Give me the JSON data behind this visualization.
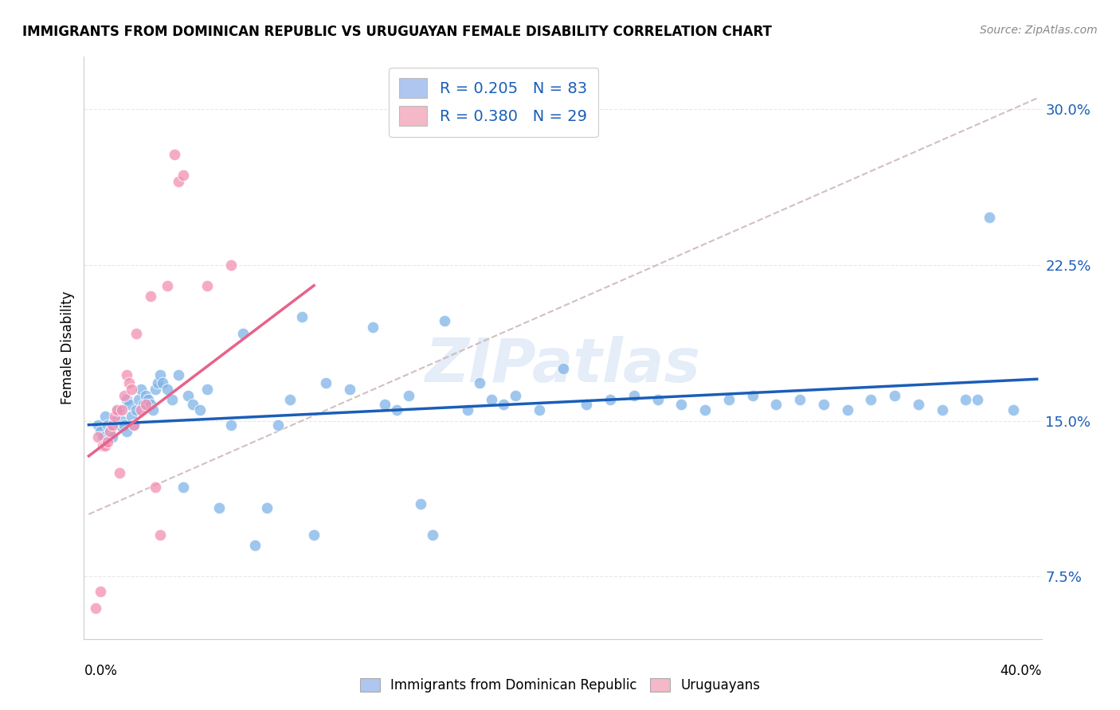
{
  "title": "IMMIGRANTS FROM DOMINICAN REPUBLIC VS URUGUAYAN FEMALE DISABILITY CORRELATION CHART",
  "source": "Source: ZipAtlas.com",
  "ylabel": "Female Disability",
  "legend_label1": "R = 0.205   N = 83",
  "legend_label2": "R = 0.380   N = 29",
  "legend_color1": "#aec6f0",
  "legend_color2": "#f4b8c8",
  "scatter_color1": "#7fb3e8",
  "scatter_color2": "#f48fb1",
  "trend_color1": "#1a5eb8",
  "trend_color2": "#e8628a",
  "trend_dashed_color": "#c8b0b0",
  "watermark": "ZIPatlas",
  "blue_scatter_x": [
    0.004,
    0.005,
    0.006,
    0.007,
    0.008,
    0.009,
    0.01,
    0.011,
    0.012,
    0.013,
    0.013,
    0.014,
    0.015,
    0.016,
    0.016,
    0.017,
    0.018,
    0.019,
    0.02,
    0.021,
    0.022,
    0.023,
    0.024,
    0.025,
    0.026,
    0.027,
    0.028,
    0.029,
    0.03,
    0.031,
    0.033,
    0.035,
    0.038,
    0.04,
    0.042,
    0.044,
    0.047,
    0.05,
    0.055,
    0.06,
    0.065,
    0.07,
    0.075,
    0.08,
    0.085,
    0.09,
    0.095,
    0.1,
    0.11,
    0.12,
    0.125,
    0.13,
    0.135,
    0.14,
    0.145,
    0.15,
    0.16,
    0.165,
    0.17,
    0.175,
    0.18,
    0.19,
    0.2,
    0.21,
    0.22,
    0.23,
    0.24,
    0.25,
    0.26,
    0.27,
    0.28,
    0.29,
    0.3,
    0.31,
    0.32,
    0.33,
    0.34,
    0.35,
    0.36,
    0.37,
    0.375,
    0.38,
    0.39
  ],
  "blue_scatter_y": [
    0.148,
    0.145,
    0.142,
    0.152,
    0.148,
    0.145,
    0.142,
    0.15,
    0.155,
    0.148,
    0.155,
    0.15,
    0.148,
    0.145,
    0.16,
    0.158,
    0.152,
    0.148,
    0.155,
    0.16,
    0.165,
    0.158,
    0.162,
    0.16,
    0.158,
    0.155,
    0.165,
    0.168,
    0.172,
    0.168,
    0.165,
    0.16,
    0.172,
    0.118,
    0.162,
    0.158,
    0.155,
    0.165,
    0.108,
    0.148,
    0.192,
    0.09,
    0.108,
    0.148,
    0.16,
    0.2,
    0.095,
    0.168,
    0.165,
    0.195,
    0.158,
    0.155,
    0.162,
    0.11,
    0.095,
    0.198,
    0.155,
    0.168,
    0.16,
    0.158,
    0.162,
    0.155,
    0.175,
    0.158,
    0.16,
    0.162,
    0.16,
    0.158,
    0.155,
    0.16,
    0.162,
    0.158,
    0.16,
    0.158,
    0.155,
    0.16,
    0.162,
    0.158,
    0.155,
    0.16,
    0.16,
    0.248,
    0.155
  ],
  "pink_scatter_x": [
    0.003,
    0.004,
    0.005,
    0.006,
    0.007,
    0.008,
    0.009,
    0.01,
    0.011,
    0.012,
    0.013,
    0.014,
    0.015,
    0.016,
    0.017,
    0.018,
    0.019,
    0.02,
    0.022,
    0.024,
    0.026,
    0.028,
    0.03,
    0.033,
    0.036,
    0.038,
    0.04,
    0.05,
    0.06
  ],
  "pink_scatter_y": [
    0.06,
    0.142,
    0.068,
    0.138,
    0.138,
    0.14,
    0.145,
    0.148,
    0.152,
    0.155,
    0.125,
    0.155,
    0.162,
    0.172,
    0.168,
    0.165,
    0.148,
    0.192,
    0.155,
    0.158,
    0.21,
    0.118,
    0.095,
    0.215,
    0.278,
    0.265,
    0.268,
    0.215,
    0.225
  ],
  "blue_trend_x": [
    0.0,
    0.4
  ],
  "blue_trend_y": [
    0.148,
    0.17
  ],
  "pink_trend_x": [
    0.0,
    0.095
  ],
  "pink_trend_y": [
    0.133,
    0.215
  ],
  "dashed_trend_x": [
    0.0,
    0.4
  ],
  "dashed_trend_y": [
    0.105,
    0.305
  ],
  "xlim": [
    -0.002,
    0.402
  ],
  "ylim": [
    0.045,
    0.325
  ],
  "ytick_values": [
    0.075,
    0.15,
    0.225,
    0.3
  ],
  "ytick_labels": [
    "7.5%",
    "15.0%",
    "22.5%",
    "30.0%"
  ],
  "xtick_values": [
    0.0,
    0.05,
    0.1,
    0.15,
    0.2,
    0.25,
    0.3,
    0.35,
    0.4
  ],
  "background_color": "#ffffff",
  "grid_color": "#e8e8e8"
}
